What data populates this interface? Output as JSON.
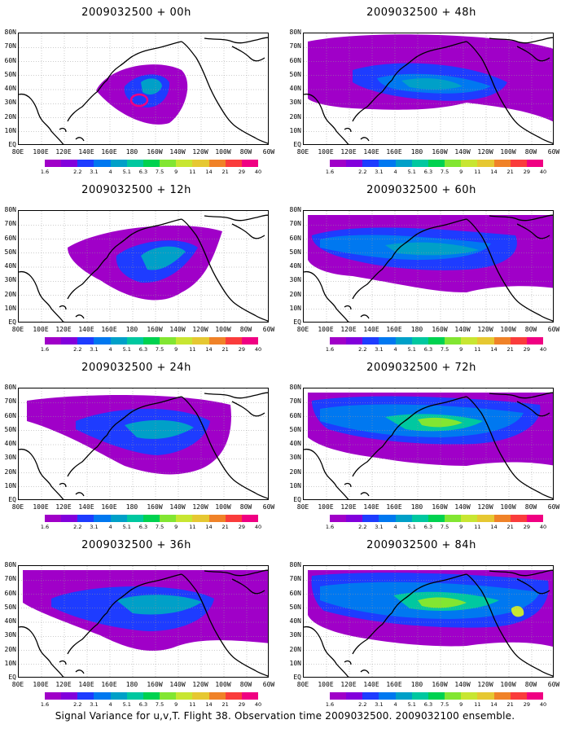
{
  "caption": "Signal Variance for u,v,T. Flight 38. Observation time 2009032500. 2009032100 ensemble.",
  "y_labels": [
    "80N",
    "70N",
    "60N",
    "50N",
    "40N",
    "30N",
    "20N",
    "10N",
    "EQ"
  ],
  "x_labels": [
    "80E",
    "100E",
    "120E",
    "140E",
    "160E",
    "180",
    "160W",
    "140W",
    "120W",
    "100W",
    "80W",
    "60W"
  ],
  "colorbar": {
    "levels": [
      "1.6",
      "2.2",
      "3.1",
      "4",
      "5.1",
      "6.3",
      "7.5",
      "9",
      "11",
      "14",
      "21",
      "29",
      "40"
    ],
    "colors": [
      "#a000c8",
      "#8200dc",
      "#1e3cff",
      "#0078f0",
      "#00a0c8",
      "#00c8a0",
      "#00d250",
      "#82e632",
      "#c8e632",
      "#e6c832",
      "#f08228",
      "#fa3c3c",
      "#f00082"
    ]
  },
  "panels": [
    {
      "title": "2009032500 + 00h"
    },
    {
      "title": "2009032500 + 48h"
    },
    {
      "title": "2009032500 + 12h"
    },
    {
      "title": "2009032500 + 60h"
    },
    {
      "title": "2009032500 + 24h"
    },
    {
      "title": "2009032500 + 72h"
    },
    {
      "title": "2009032500 + 36h"
    },
    {
      "title": "2009032500 + 84h"
    }
  ]
}
